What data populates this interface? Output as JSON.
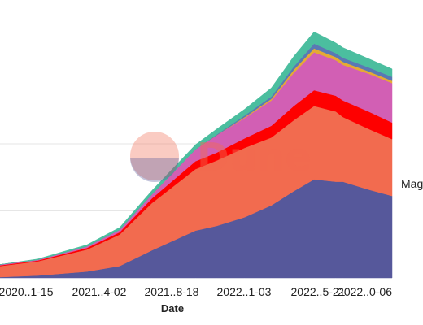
{
  "chart_data": {
    "type": "area",
    "stacked": true,
    "xlabel": "Date",
    "x": [
      "2019-10-01",
      "2020-01-15",
      "2020-06-01",
      "2020-09-01",
      "2020-12-01",
      "2021-04-02",
      "2021-06-01",
      "2021-08-18",
      "2021-11-01",
      "2022-01-03",
      "2022-03-01",
      "2022-05-01",
      "2022-05-21",
      "2022-08-01",
      "2022-10-06"
    ],
    "x_ticks": [
      "2020..1-15",
      "2021..4-02",
      "2021..8-18",
      "2022..1-03",
      "2022..5-21",
      "2022..0-06"
    ],
    "series": [
      {
        "color": "#56589b",
        "values": [
          1,
          3,
          8,
          15,
          35,
          60,
          66,
          77,
          92,
          110,
          125,
          122,
          122,
          112,
          104
        ]
      },
      {
        "color": "#f26b4f",
        "values": [
          14,
          18,
          28,
          40,
          60,
          78,
          83,
          88,
          86,
          90,
          93,
          89,
          82,
          77,
          72
        ]
      },
      {
        "color": "#fe0000",
        "values": [
          1,
          1,
          2,
          3,
          6,
          10,
          10,
          12,
          15,
          18,
          20,
          20,
          21,
          22,
          21
        ]
      },
      {
        "color": "#d25fb4",
        "values": [
          1,
          1,
          2,
          3,
          5,
          15,
          22,
          26,
          32,
          42,
          48,
          45,
          45,
          48,
          50
        ]
      },
      {
        "color": "#e5aa34",
        "values": [
          0,
          0,
          0,
          0,
          0,
          0,
          0,
          1,
          2,
          4,
          5,
          4,
          4,
          3,
          3
        ]
      },
      {
        "color": "#5a78b4",
        "values": [
          0,
          0,
          0,
          0,
          0,
          0,
          1,
          2,
          3,
          4,
          6,
          5,
          5,
          5,
          5
        ]
      },
      {
        "color": "#4bbe9f",
        "values": [
          0,
          1,
          2,
          3,
          5,
          6,
          7,
          8,
          11,
          13,
          15,
          13,
          13,
          11,
          10
        ]
      }
    ],
    "ylim": [
      0,
      340
    ],
    "grid": true,
    "legend": [
      {
        "label": "Mag",
        "position": "right"
      }
    ],
    "watermark": "Dune"
  }
}
